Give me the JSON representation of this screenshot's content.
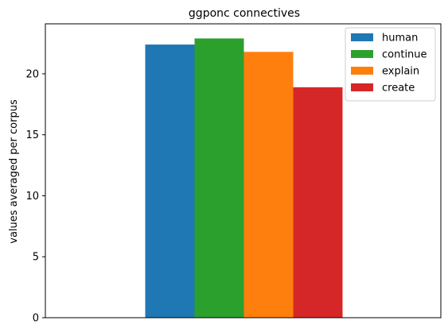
{
  "chart_data": {
    "type": "bar",
    "title": "ggponc connectives",
    "xlabel": "",
    "ylabel": "values averaged per corpus",
    "categories": [
      ""
    ],
    "series": [
      {
        "name": "human",
        "values": [
          22.4
        ],
        "color": "#1f77b4"
      },
      {
        "name": "continue",
        "values": [
          22.9
        ],
        "color": "#2ca02c"
      },
      {
        "name": "explain",
        "values": [
          21.8
        ],
        "color": "#ff7f0e"
      },
      {
        "name": "create",
        "values": [
          18.9
        ],
        "color": "#d62728"
      }
    ],
    "ylim": [
      0,
      24.1
    ],
    "yticks": [
      0,
      5,
      10,
      15,
      20
    ],
    "grid": false,
    "legend_position": "top-right"
  }
}
